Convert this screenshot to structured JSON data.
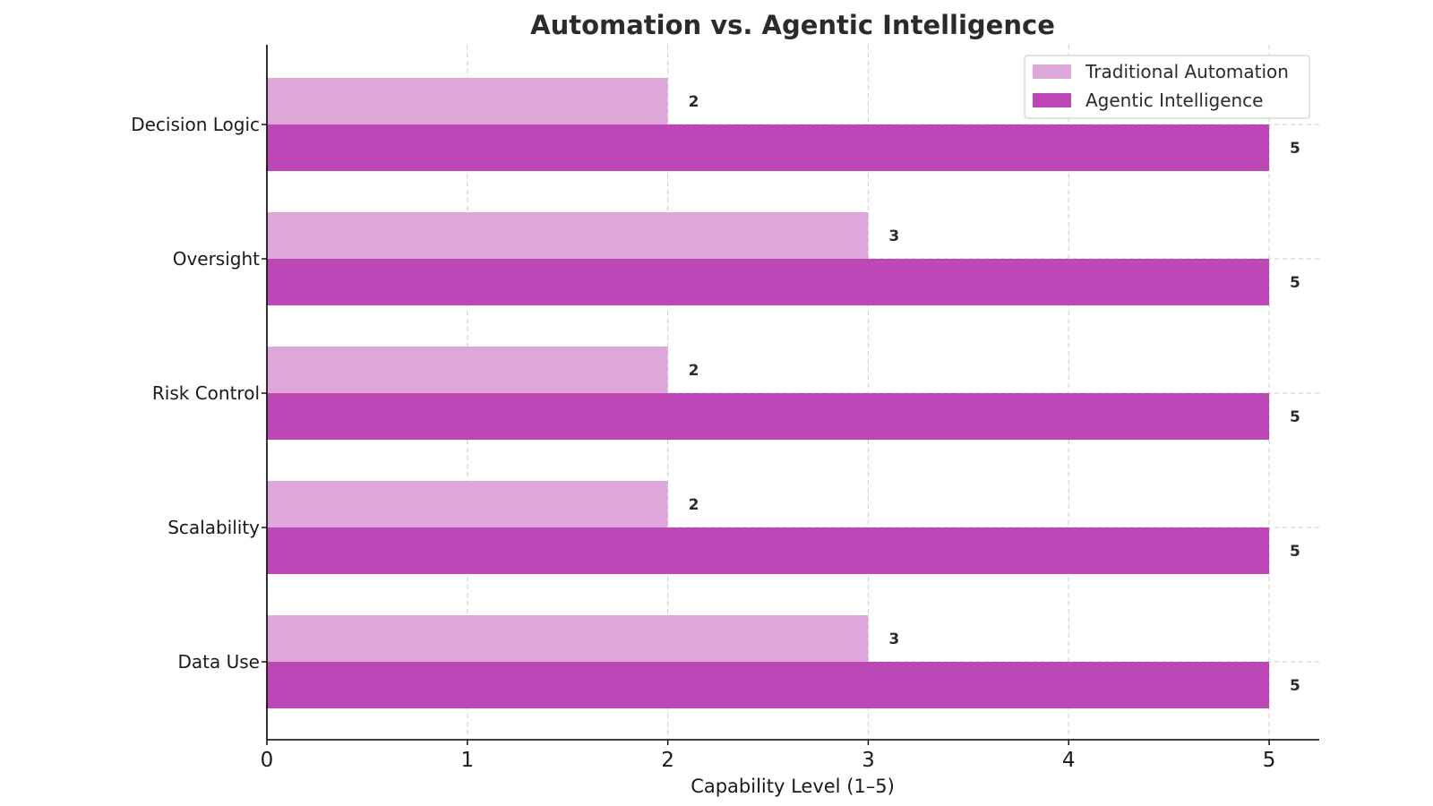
{
  "chart_data": {
    "type": "bar",
    "orientation": "horizontal",
    "title": "Automation vs. Agentic Intelligence",
    "xlabel": "Capability Level (1–5)",
    "ylabel": "",
    "categories": [
      "Decision Logic",
      "Oversight",
      "Risk Control",
      "Scalability",
      "Data Use"
    ],
    "series": [
      {
        "name": "Traditional Automation",
        "values": [
          2,
          3,
          2,
          2,
          3
        ],
        "color": "#dda7d9"
      },
      {
        "name": "Agentic Intelligence",
        "values": [
          5,
          5,
          5,
          5,
          5
        ],
        "color": "#bd47b6"
      }
    ],
    "xlim": [
      0,
      5.25
    ],
    "xticks": [
      "0",
      "1",
      "2",
      "3",
      "4",
      "5"
    ],
    "grid": true,
    "legend_position": "top-right",
    "data_labels": true
  }
}
